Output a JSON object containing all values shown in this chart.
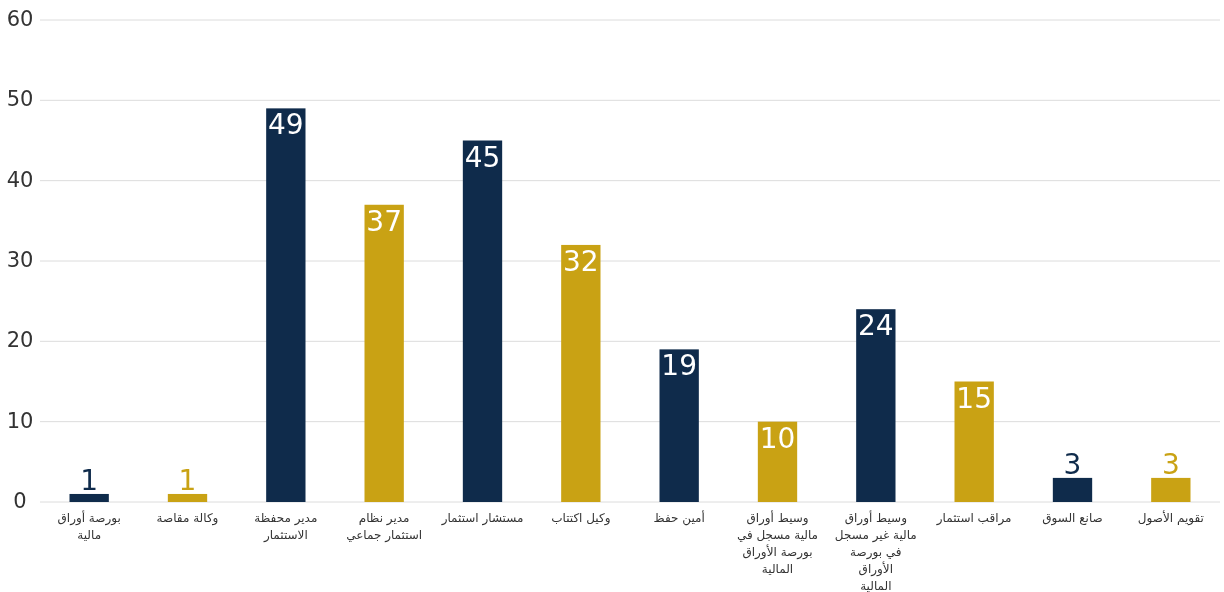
{
  "chart_data": {
    "type": "bar",
    "categories": [
      "بورصة أوراق مالية",
      "وكالة مقاصة",
      "مدير محفظة الاستثمار",
      "مدير نظام استثمار جماعي",
      "مستشار استثمار",
      "وكيل اكتتاب",
      "أمين حفظ",
      "وسيط أوراق مالية مسجل في بورصة الأوراق المالية",
      "وسيط أوراق مالية غير مسجل في بورصة الأوراق المالية",
      "مراقب استثمار",
      "صانع السوق",
      "تقويم الأصول"
    ],
    "values": [
      1,
      1,
      49,
      37,
      45,
      32,
      19,
      10,
      24,
      15,
      3,
      3
    ],
    "colors": [
      "#0f2b4b",
      "#c9a214",
      "#0f2b4b",
      "#c9a214",
      "#0f2b4b",
      "#c9a214",
      "#0f2b4b",
      "#c9a214",
      "#0f2b4b",
      "#c9a214",
      "#0f2b4b",
      "#c9a214"
    ],
    "ylim": [
      0,
      60
    ],
    "yticks": [
      0,
      10,
      20,
      30,
      40,
      50,
      60
    ],
    "grid": "y",
    "data_labels": true
  }
}
